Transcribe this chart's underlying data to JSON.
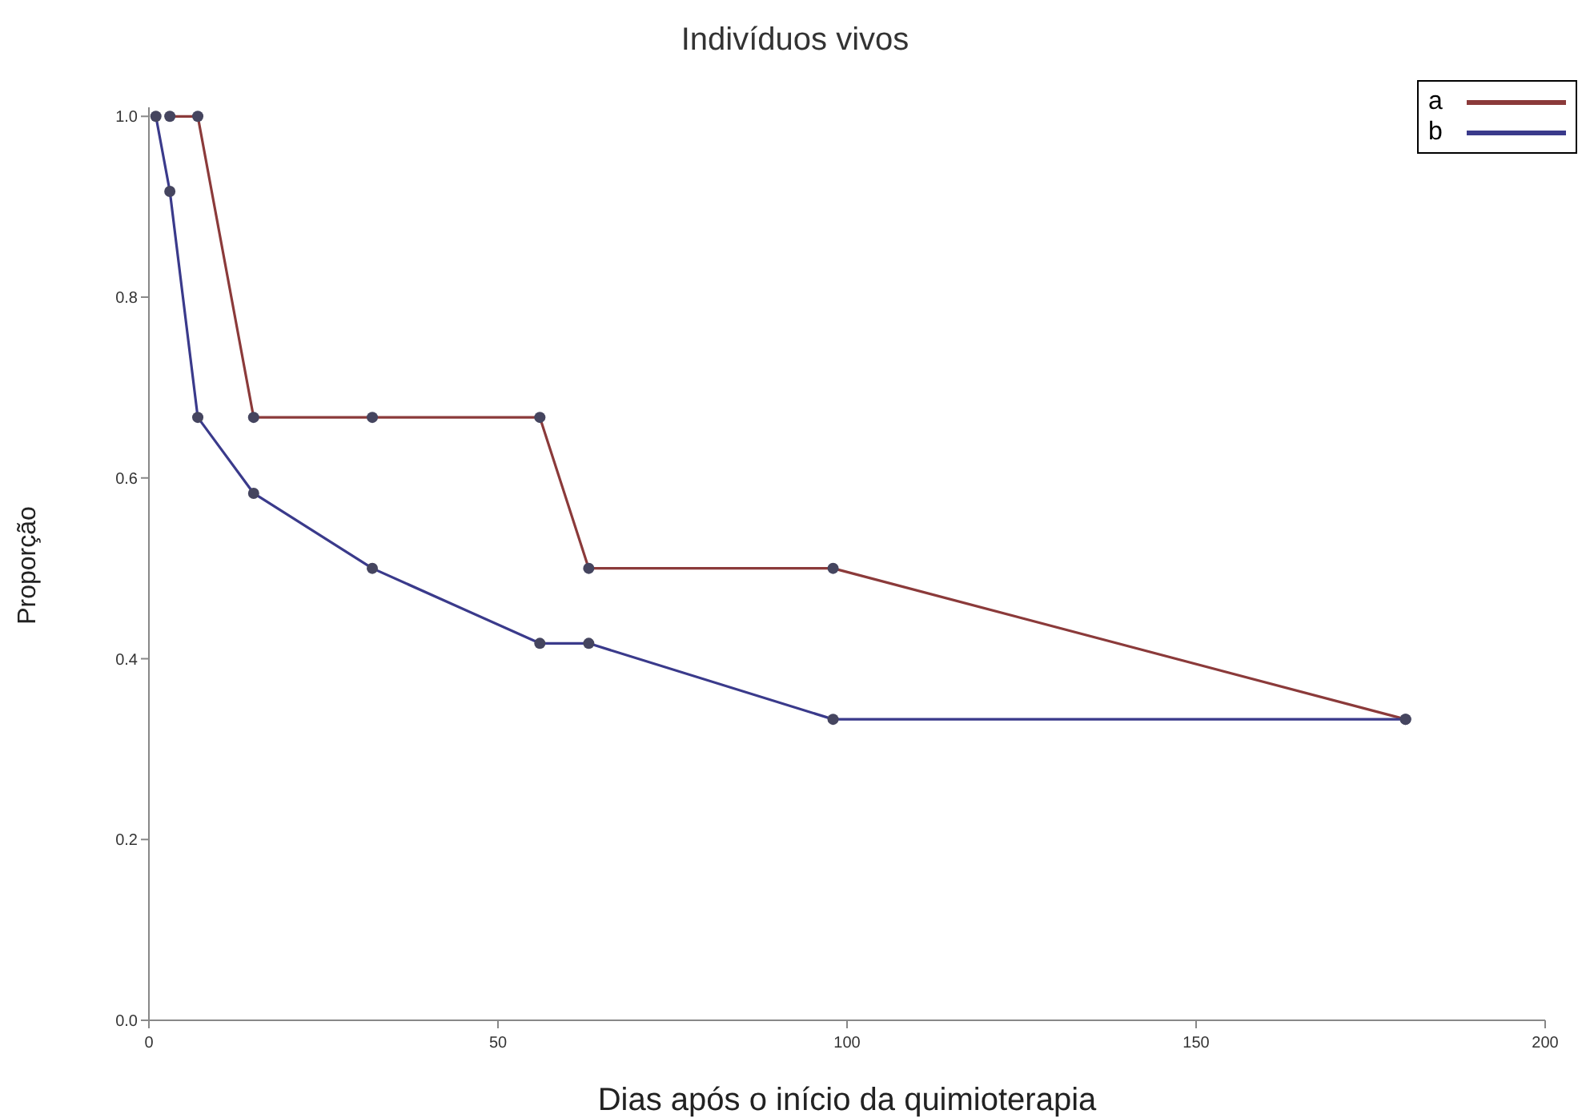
{
  "chart_data": {
    "type": "line",
    "title": "Indivíduos vivos",
    "xlabel": "Dias após o início da quimioterapia",
    "ylabel": "Proporção",
    "series": [
      {
        "name": "a",
        "color": "#8b3a3a",
        "x": [
          3,
          7,
          15,
          32,
          56,
          63,
          98,
          180
        ],
        "values": [
          1,
          1,
          0.667,
          0.667,
          0.667,
          0.5,
          0.5,
          0.333
        ]
      },
      {
        "name": "b",
        "color": "#3a3a8b",
        "x": [
          1,
          3,
          7,
          15,
          32,
          56,
          63,
          98,
          180
        ],
        "values": [
          1,
          0.917,
          0.667,
          0.583,
          0.5,
          0.417,
          0.417,
          0.333,
          0.333
        ]
      }
    ],
    "xlim": [
      0,
      200
    ],
    "xticks": [
      0,
      50,
      100,
      150,
      200
    ],
    "ylim": [
      0,
      1.01
    ],
    "yticks": [
      {
        "value": 0,
        "label": "0.0"
      },
      {
        "value": 0.2,
        "label": "0.2"
      },
      {
        "value": 0.4,
        "label": "0.4"
      },
      {
        "value": 0.6,
        "label": "0.6"
      },
      {
        "value": 0.8,
        "label": "0.8"
      },
      {
        "value": 1,
        "label": "1.0"
      }
    ],
    "grid": false,
    "legend": "top right",
    "marker": "circle",
    "line_style": "solid"
  }
}
